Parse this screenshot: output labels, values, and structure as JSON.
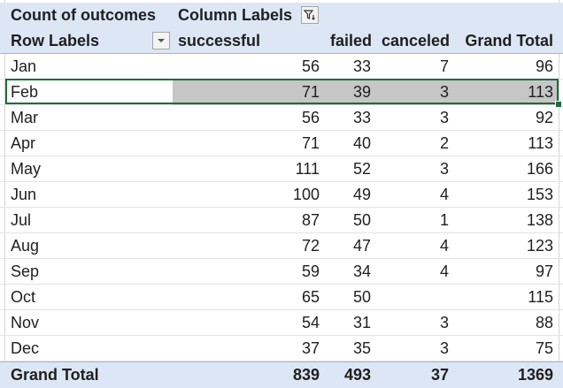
{
  "pivot": {
    "value_field": "Count of outcomes",
    "column_labels": "Column Labels",
    "row_labels": "Row Labels",
    "columns": [
      "successful",
      "failed",
      "canceled",
      "Grand Total"
    ],
    "rows": [
      {
        "label": "Jan",
        "values": [
          "56",
          "33",
          "7",
          "96"
        ]
      },
      {
        "label": "Feb",
        "values": [
          "71",
          "39",
          "3",
          "113"
        ]
      },
      {
        "label": "Mar",
        "values": [
          "56",
          "33",
          "3",
          "92"
        ]
      },
      {
        "label": "Apr",
        "values": [
          "71",
          "40",
          "2",
          "113"
        ]
      },
      {
        "label": "May",
        "values": [
          "111",
          "52",
          "3",
          "166"
        ]
      },
      {
        "label": "Jun",
        "values": [
          "100",
          "49",
          "4",
          "153"
        ]
      },
      {
        "label": "Jul",
        "values": [
          "87",
          "50",
          "1",
          "138"
        ]
      },
      {
        "label": "Aug",
        "values": [
          "72",
          "47",
          "4",
          "123"
        ]
      },
      {
        "label": "Sep",
        "values": [
          "59",
          "34",
          "4",
          "97"
        ]
      },
      {
        "label": "Oct",
        "values": [
          "65",
          "50",
          "",
          "115"
        ]
      },
      {
        "label": "Nov",
        "values": [
          "54",
          "31",
          "3",
          "88"
        ]
      },
      {
        "label": "Dec",
        "values": [
          "37",
          "35",
          "3",
          "75"
        ]
      }
    ],
    "grand_total": {
      "label": "Grand Total",
      "values": [
        "839",
        "493",
        "37",
        "1369"
      ]
    },
    "selected_row": "Feb",
    "icons": {
      "column_filter": "filter-dropdown-icon",
      "row_filter": "dropdown-arrow-icon"
    },
    "colors": {
      "header_fill": "#dde6f5",
      "selection_border": "#1e6b3a",
      "selection_fill": "#c6c6c6"
    }
  }
}
